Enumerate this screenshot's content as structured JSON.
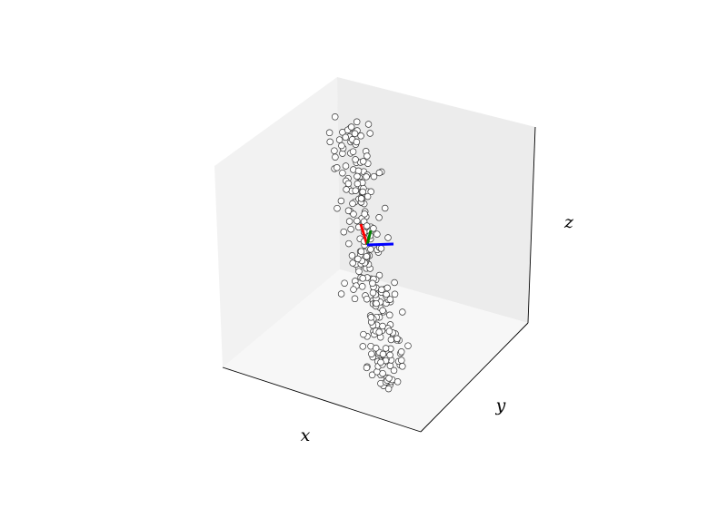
{
  "chart_data": {
    "type": "scatter",
    "projection": "3d",
    "xlabel": "x",
    "ylabel": "y",
    "zlabel": "z",
    "ticks": "hidden",
    "grid": false,
    "marker": {
      "shape": "circle",
      "face_color": "#ffffff",
      "edge_color": "#333333"
    },
    "pane_colors": {
      "left": "#f2f2f2",
      "back": "#ececec",
      "floor": "#f7f7f7"
    },
    "point_count": 260,
    "point_cloud": {
      "shape": "elongated cluster along a principal axis",
      "center": [
        0,
        0,
        0
      ],
      "principal_axis_extent": [
        -1,
        1
      ],
      "spread": 0.09
    },
    "principal_axes": [
      {
        "color": "#ff0000"
      },
      {
        "color": "#008000"
      },
      {
        "color": "#0000ff"
      }
    ]
  }
}
